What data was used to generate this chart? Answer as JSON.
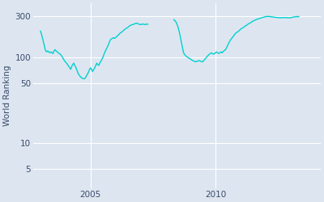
{
  "ylabel": "World Ranking",
  "line_color": "#00D0D0",
  "axes_facecolor": "#DDE6F0",
  "figure_facecolor": "#DDE6F0",
  "grid_color": "#FFFFFF",
  "yticks": [
    5,
    10,
    50,
    100,
    300
  ],
  "xtick_labels": [
    "2005",
    "2010"
  ],
  "xtick_positions": [
    2005,
    2010
  ],
  "xlim": [
    2002.7,
    2014.2
  ],
  "ylim": [
    3,
    420
  ],
  "segment1_x": [
    2003.0,
    2003.02,
    2003.04,
    2003.06,
    2003.08,
    2003.1,
    2003.12,
    2003.15,
    2003.17,
    2003.19,
    2003.21,
    2003.25,
    2003.29,
    2003.33,
    2003.37,
    2003.42,
    2003.46,
    2003.5,
    2003.54,
    2003.58,
    2003.62,
    2003.67,
    2003.71,
    2003.75,
    2003.79,
    2003.83,
    2003.87,
    2003.92,
    2003.96,
    2004.0,
    2004.04,
    2004.08,
    2004.13,
    2004.17,
    2004.21,
    2004.25,
    2004.29,
    2004.33,
    2004.37,
    2004.42,
    2004.46,
    2004.5,
    2004.54,
    2004.58,
    2004.62,
    2004.67,
    2004.71,
    2004.75,
    2004.79,
    2004.83,
    2004.87,
    2004.92,
    2004.96,
    2005.0,
    2005.04,
    2005.08,
    2005.13,
    2005.17,
    2005.21,
    2005.25,
    2005.29,
    2005.33,
    2005.37,
    2005.42,
    2005.46,
    2005.5,
    2005.54,
    2005.58,
    2005.62,
    2005.67,
    2005.71,
    2005.75,
    2005.79,
    2005.83,
    2005.87,
    2005.92,
    2005.96,
    2006.0,
    2006.04,
    2006.08,
    2006.13,
    2006.17,
    2006.21,
    2006.25,
    2006.29,
    2006.33,
    2006.37,
    2006.42,
    2006.46,
    2006.5,
    2006.54,
    2006.58,
    2006.62,
    2006.67,
    2006.71,
    2006.75,
    2006.79,
    2006.83,
    2006.87,
    2006.92,
    2006.96,
    2007.0,
    2007.04,
    2007.08,
    2007.13,
    2007.17,
    2007.21,
    2007.25,
    2007.29
  ],
  "segment1_y": [
    200,
    192,
    183,
    175,
    165,
    158,
    148,
    138,
    128,
    122,
    118,
    115,
    118,
    115,
    112,
    115,
    112,
    110,
    118,
    122,
    118,
    115,
    112,
    110,
    108,
    105,
    100,
    95,
    90,
    88,
    85,
    82,
    78,
    75,
    72,
    78,
    82,
    85,
    80,
    75,
    70,
    65,
    62,
    60,
    58,
    57,
    56,
    56,
    57,
    60,
    63,
    67,
    72,
    75,
    72,
    68,
    72,
    75,
    80,
    85,
    82,
    80,
    85,
    90,
    95,
    100,
    108,
    115,
    122,
    130,
    138,
    148,
    158,
    162,
    165,
    168,
    165,
    168,
    172,
    178,
    182,
    188,
    192,
    195,
    200,
    205,
    210,
    215,
    218,
    222,
    228,
    232,
    235,
    238,
    240,
    242,
    245,
    248,
    245,
    242,
    240,
    238,
    240,
    242,
    240,
    238,
    240,
    242,
    240
  ],
  "segment2_x": [
    2008.33,
    2008.37,
    2008.42,
    2008.46,
    2008.5,
    2008.54,
    2008.58,
    2008.62,
    2008.67,
    2008.71,
    2008.75,
    2008.79,
    2008.83,
    2008.87,
    2008.92,
    2008.96,
    2009.0,
    2009.04,
    2009.08,
    2009.13,
    2009.17,
    2009.21,
    2009.25,
    2009.29,
    2009.33,
    2009.37,
    2009.42,
    2009.46,
    2009.5,
    2009.54,
    2009.58,
    2009.62,
    2009.67,
    2009.71,
    2009.75,
    2009.79,
    2009.83,
    2009.87,
    2009.92,
    2009.96,
    2010.0,
    2010.04,
    2010.08,
    2010.13,
    2010.17,
    2010.21,
    2010.25,
    2010.29,
    2010.33,
    2010.37,
    2010.42,
    2010.46,
    2010.5,
    2010.54,
    2010.58,
    2010.62,
    2010.67,
    2010.71,
    2010.75,
    2010.79,
    2010.83,
    2010.87,
    2010.92,
    2010.96,
    2011.0,
    2011.04,
    2011.08,
    2011.13,
    2011.17,
    2011.21,
    2011.25,
    2011.29,
    2011.33,
    2011.37,
    2011.42,
    2011.46,
    2011.5,
    2011.54,
    2011.58,
    2011.62,
    2011.67,
    2011.71,
    2011.75,
    2011.79,
    2011.83,
    2011.87,
    2011.92,
    2011.96,
    2012.0,
    2012.04,
    2012.08,
    2012.13,
    2012.17,
    2012.21,
    2012.25,
    2012.29,
    2012.33,
    2012.62,
    2012.67,
    2013.0,
    2013.04,
    2013.08,
    2013.13,
    2013.17,
    2013.21,
    2013.25,
    2013.29,
    2013.33
  ],
  "segment2_y": [
    272,
    265,
    255,
    240,
    222,
    200,
    178,
    155,
    132,
    115,
    108,
    105,
    102,
    100,
    98,
    96,
    95,
    93,
    91,
    90,
    89,
    88,
    89,
    90,
    91,
    90,
    89,
    88,
    89,
    92,
    95,
    98,
    102,
    105,
    108,
    110,
    112,
    110,
    108,
    110,
    112,
    115,
    112,
    110,
    112,
    115,
    112,
    115,
    118,
    120,
    125,
    132,
    140,
    148,
    155,
    162,
    168,
    175,
    180,
    188,
    192,
    195,
    200,
    205,
    210,
    215,
    218,
    222,
    228,
    232,
    235,
    240,
    245,
    248,
    252,
    258,
    262,
    265,
    268,
    272,
    275,
    278,
    280,
    282,
    285,
    288,
    290,
    292,
    295,
    296,
    297,
    296,
    295,
    294,
    293,
    292,
    290,
    285,
    288,
    285,
    288,
    290,
    292,
    293,
    294,
    295,
    295,
    295
  ]
}
